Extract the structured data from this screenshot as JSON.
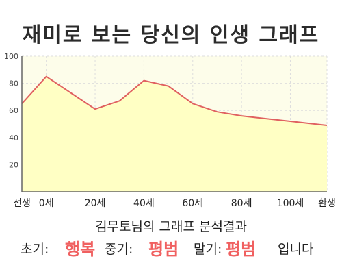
{
  "chart_data": {
    "type": "area",
    "title": "재미로 보는 당신의 인생 그래프",
    "xlabel": "",
    "ylabel": "",
    "x_tick_labels": [
      {
        "x": -10,
        "label": "전생"
      },
      {
        "x": 0,
        "label": "0세"
      },
      {
        "x": 20,
        "label": "20세"
      },
      {
        "x": 40,
        "label": "40세"
      },
      {
        "x": 60,
        "label": "60세"
      },
      {
        "x": 80,
        "label": "80세"
      },
      {
        "x": 100,
        "label": "100세"
      },
      {
        "x": 115,
        "label": "환생"
      }
    ],
    "y_ticks": [
      20,
      40,
      60,
      80,
      100
    ],
    "xlim": [
      -10,
      115
    ],
    "ylim": [
      0,
      100
    ],
    "grid": true,
    "series": [
      {
        "x": [
          -10,
          0,
          20,
          30,
          40,
          50,
          60,
          70,
          80,
          90,
          100,
          115
        ],
        "values": [
          65,
          85,
          61,
          67,
          82,
          78,
          65,
          59,
          56,
          54,
          52,
          49
        ]
      }
    ],
    "colors": {
      "line": "#e06060",
      "fill": "#ffffc4",
      "plot_background": "#fdfdea",
      "grid": "#dddddd",
      "axis": "#666666"
    }
  },
  "result": {
    "title": "김무토님의 그래프 분석결과",
    "early_label": "초기:",
    "early_value": "행복",
    "middle_label": "중기:",
    "middle_value": "평범",
    "late_label": "말기:",
    "late_value": "평범",
    "suffix": "입니다"
  }
}
